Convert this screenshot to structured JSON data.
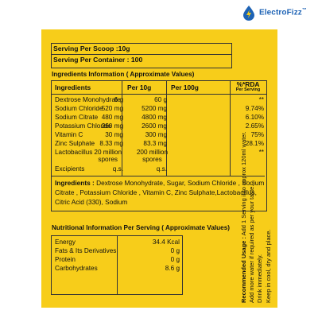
{
  "brand": {
    "name": "ElectroFizz",
    "trademark": "™"
  },
  "serving": {
    "per_scoop": "Serving Per Scoop :10g",
    "per_container": "Serving Per Container : 100"
  },
  "ingredients_info": {
    "title": "Ingredients Information ( Approximate Values)",
    "headers": {
      "name": "Ingredients",
      "per10": "Per 10g",
      "per100": "Per 100g",
      "rda": "%*RDA",
      "rda_sub": "Per Serving"
    },
    "rows": [
      {
        "name": "Dextrose Monohydrate",
        "per10": "6 g",
        "per100": "60 g",
        "rda": "**"
      },
      {
        "name": "Sodium Chloride",
        "per10": "520 mg",
        "per100": "5200 mg",
        "rda": "9.74%"
      },
      {
        "name": "Sodium Citrate",
        "per10": "480 mg",
        "per100": "4800 mg",
        "rda": "6.10%"
      },
      {
        "name": "Potassium Chloride",
        "per10": "260 mg",
        "per100": "2600 mg",
        "rda": "2.65%"
      },
      {
        "name": "Vitamin C",
        "per10": "30 mg",
        "per100": "300 mg",
        "rda": "75%"
      },
      {
        "name": "Zinc Sulphate",
        "per10": "8.33 mg",
        "per100": "83.3 mg",
        "rda": "28.1%"
      },
      {
        "name": "Lactobacillus",
        "per10": "20 million",
        "per10_b": "spores",
        "per100": "200 million",
        "per100_b": "spores",
        "rda": "**"
      },
      {
        "name": "Excipients",
        "per10": "q.s.",
        "per100": "q.s.",
        "rda": ""
      }
    ],
    "ingredients_label": "Ingredients :",
    "ingredients_text": "Dextrose Monohydrate, Sugar, Sodium Chloride , Sodium Citrate , Potassium Chloride , Vitamin C, Zinc Sulphate,Lactobacillus, Citric Acid (330), Sodium"
  },
  "nutrition": {
    "title": "Nutritional Information Per Serving ( Approximate Values)",
    "rows": [
      {
        "name": "Energy",
        "value": "34.4 Kcal"
      },
      {
        "name": "Fats & Its Derivatives",
        "value": "0 g"
      },
      {
        "name": "Protein",
        "value": "0 g"
      },
      {
        "name": "Carbohydrates",
        "value": "8.6 g"
      }
    ]
  },
  "usage": {
    "label": "Recommended Usage :",
    "line1": "Add 1 Serving into approx 120ml water.",
    "line2": "Add more water if required as per your taste.",
    "line3": "Drink immediately.",
    "line4": "Keep in cool, dry and place."
  },
  "colors": {
    "label_yellow": "#f7cd1a",
    "brand_blue": "#1e63b5"
  }
}
